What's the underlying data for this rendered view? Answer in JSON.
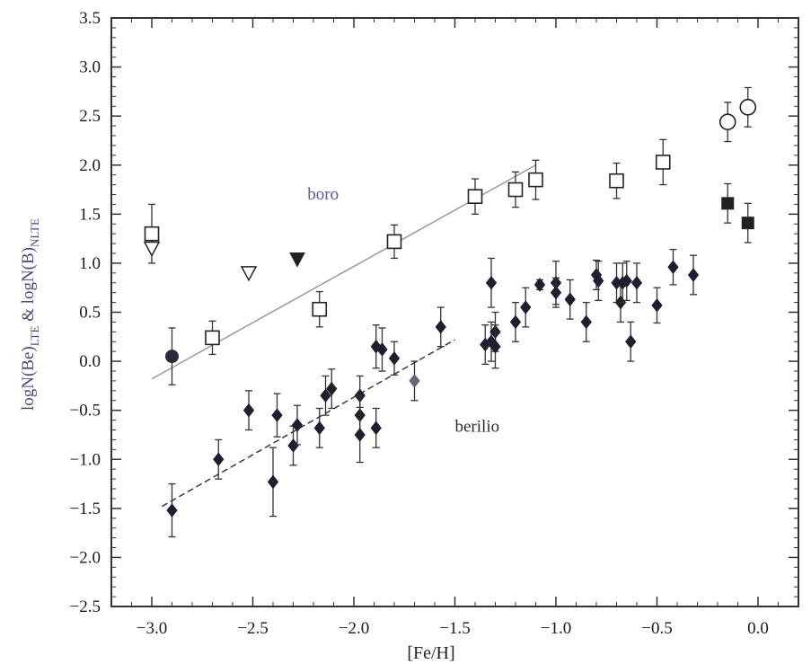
{
  "chart_data": {
    "type": "scatter",
    "xlabel": "[Fe/H]",
    "ylabel_main": "logN(Be)",
    "ylabel_sub1": "LTE",
    "ylabel_amp": " & logN(B)",
    "ylabel_sub2": "NLTE",
    "xlim": [
      -3.2,
      0.2
    ],
    "ylim": [
      -2.5,
      3.5
    ],
    "x_ticks": [
      -3.0,
      -2.5,
      -2.0,
      -1.5,
      -1.0,
      -0.5,
      0.0
    ],
    "x_tick_labels": [
      "−3.0",
      "−2.5",
      "−2.0",
      "−1.5",
      "−1.0",
      "−0.5",
      "0.0"
    ],
    "y_ticks": [
      -2.5,
      -2.0,
      -1.5,
      -1.0,
      -0.5,
      0.0,
      0.5,
      1.0,
      1.5,
      2.0,
      2.5,
      3.0,
      3.5
    ],
    "y_tick_labels": [
      "−2.5",
      "−2.0",
      "−1.5",
      "−1.0",
      "−0.5",
      "0.0",
      "0.5",
      "1.0",
      "1.5",
      "2.0",
      "2.5",
      "3.0",
      "3.5"
    ],
    "annotations": [
      {
        "text": "boro",
        "x": -2.23,
        "y": 1.65,
        "color": "#5a5a9a"
      },
      {
        "text": "berilio",
        "x": -1.5,
        "y": -0.72,
        "color": "#2a2a2a"
      }
    ],
    "fit_lines": [
      {
        "name": "boro-fit",
        "style": "solid",
        "color": "#9a9a9a",
        "x": [
          -3.0,
          -1.1
        ],
        "y": [
          -0.18,
          2.0
        ]
      },
      {
        "name": "berilio-fit",
        "style": "dashed",
        "color": "#3a3a3a",
        "x": [
          -2.95,
          -1.5
        ],
        "y": [
          -1.48,
          0.22
        ]
      }
    ],
    "series": [
      {
        "marker": "open-square",
        "points": [
          {
            "x": -3.0,
            "y": 1.3,
            "err": 0.3
          },
          {
            "x": -2.7,
            "y": 0.24,
            "err": 0.17
          },
          {
            "x": -2.17,
            "y": 0.53,
            "err": 0.18
          },
          {
            "x": -1.8,
            "y": 1.22,
            "err": 0.17
          },
          {
            "x": -1.4,
            "y": 1.68,
            "err": 0.18
          },
          {
            "x": -1.2,
            "y": 1.75,
            "err": 0.18
          },
          {
            "x": -1.1,
            "y": 1.85,
            "err": 0.2
          },
          {
            "x": -0.7,
            "y": 1.84,
            "err": 0.18
          },
          {
            "x": -0.47,
            "y": 2.03,
            "err": 0.23
          }
        ]
      },
      {
        "marker": "open-circle",
        "points": [
          {
            "x": -0.15,
            "y": 2.44,
            "err": 0.2
          },
          {
            "x": -0.05,
            "y": 2.59,
            "err": 0.2
          }
        ]
      },
      {
        "marker": "filled-square",
        "points": [
          {
            "x": -0.15,
            "y": 1.61,
            "err": 0.2
          },
          {
            "x": -0.05,
            "y": 1.41,
            "err": 0.2
          }
        ]
      },
      {
        "marker": "open-triangle-down",
        "points": [
          {
            "x": -3.0,
            "y": 1.15,
            "err": 0
          },
          {
            "x": -2.52,
            "y": 0.9,
            "err": 0
          }
        ]
      },
      {
        "marker": "filled-triangle-down",
        "points": [
          {
            "x": -2.28,
            "y": 1.04,
            "err": 0
          }
        ]
      },
      {
        "marker": "filled-circle",
        "points": [
          {
            "x": -2.9,
            "y": 0.05,
            "err": 0.29
          }
        ]
      },
      {
        "marker": "filled-diamond",
        "points": [
          {
            "x": -2.9,
            "y": -1.52,
            "err": 0.27
          },
          {
            "x": -2.67,
            "y": -1.0,
            "err": 0.2
          },
          {
            "x": -2.52,
            "y": -0.5,
            "err": 0.2
          },
          {
            "x": -2.4,
            "y": -1.23,
            "err": 0.35
          },
          {
            "x": -2.38,
            "y": -0.55,
            "err": 0.22
          },
          {
            "x": -2.3,
            "y": -0.86,
            "err": 0.2
          },
          {
            "x": -2.28,
            "y": -0.65,
            "err": 0.2
          },
          {
            "x": -2.17,
            "y": -0.68,
            "err": 0.2
          },
          {
            "x": -2.14,
            "y": -0.35,
            "err": 0.2
          },
          {
            "x": -2.11,
            "y": -0.28,
            "err": 0.2
          },
          {
            "x": -1.97,
            "y": -0.35,
            "err": 0.2
          },
          {
            "x": -1.97,
            "y": -0.55,
            "err": 0.2
          },
          {
            "x": -1.97,
            "y": -0.75,
            "err": 0.28
          },
          {
            "x": -1.89,
            "y": -0.68,
            "err": 0.2
          },
          {
            "x": -1.89,
            "y": 0.15,
            "err": 0.22
          },
          {
            "x": -1.86,
            "y": 0.12,
            "err": 0.22
          },
          {
            "x": -1.8,
            "y": 0.03,
            "err": 0.17
          },
          {
            "x": -1.7,
            "y": -0.2,
            "err": 0.2,
            "color": "#666677"
          },
          {
            "x": -1.57,
            "y": 0.35,
            "err": 0.2
          },
          {
            "x": -1.35,
            "y": 0.17,
            "err": 0.2
          },
          {
            "x": -1.32,
            "y": 0.8,
            "err": 0.25
          },
          {
            "x": -1.32,
            "y": 0.2,
            "err": 0.2
          },
          {
            "x": -1.3,
            "y": 0.3,
            "err": 0.2
          },
          {
            "x": -1.3,
            "y": 0.15,
            "err": 0.22
          },
          {
            "x": -1.2,
            "y": 0.4,
            "err": 0.2
          },
          {
            "x": -1.15,
            "y": 0.55,
            "err": 0.2
          },
          {
            "x": -1.08,
            "y": 0.78,
            "err": 0.05
          },
          {
            "x": -1.0,
            "y": 0.8,
            "err": 0.22
          },
          {
            "x": -1.0,
            "y": 0.7,
            "err": 0.15
          },
          {
            "x": -0.93,
            "y": 0.63,
            "err": 0.2
          },
          {
            "x": -0.85,
            "y": 0.4,
            "err": 0.2
          },
          {
            "x": -0.8,
            "y": 0.88,
            "err": 0.15
          },
          {
            "x": -0.79,
            "y": 0.82,
            "err": 0.2
          },
          {
            "x": -0.7,
            "y": 0.8,
            "err": 0.2
          },
          {
            "x": -0.68,
            "y": 0.6,
            "err": 0.2
          },
          {
            "x": -0.67,
            "y": 0.8,
            "err": 0.2
          },
          {
            "x": -0.65,
            "y": 0.82,
            "err": 0.2
          },
          {
            "x": -0.63,
            "y": 0.2,
            "err": 0.2
          },
          {
            "x": -0.6,
            "y": 0.8,
            "err": 0.2
          },
          {
            "x": -0.5,
            "y": 0.57,
            "err": 0.18
          },
          {
            "x": -0.42,
            "y": 0.96,
            "err": 0.18
          },
          {
            "x": -0.32,
            "y": 0.88,
            "err": 0.2
          }
        ]
      }
    ]
  }
}
